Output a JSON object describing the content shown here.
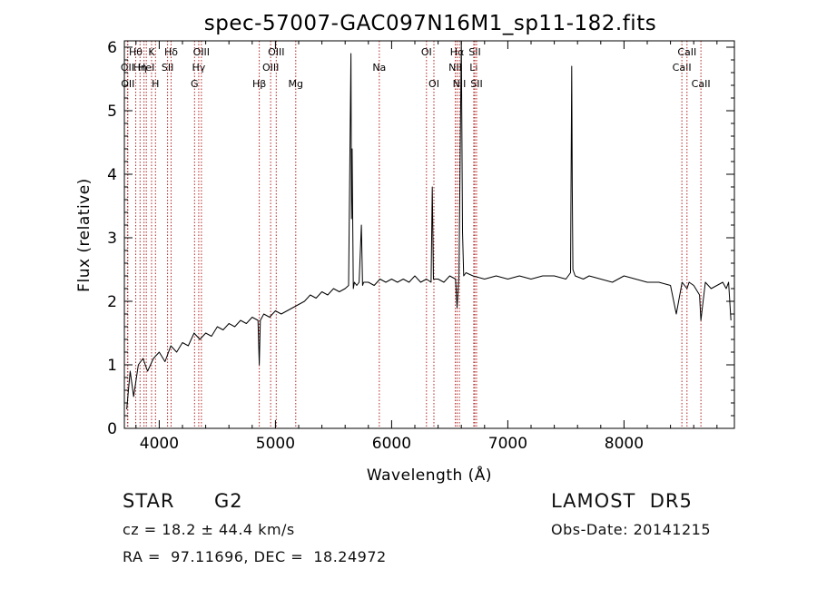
{
  "chart_data": {
    "type": "line",
    "title": "spec-57007-GAC097N16M1_sp11-182.fits",
    "xlabel": "Wavelength (Å)",
    "ylabel": "Flux (relative)",
    "xlim": [
      3700,
      8950
    ],
    "ylim": [
      0,
      6.1
    ],
    "xticks": [
      4000,
      5000,
      6000,
      7000,
      8000
    ],
    "yticks": [
      0,
      1,
      2,
      3,
      4,
      5,
      6
    ],
    "grid": false,
    "line_color": "#000000",
    "marker_color": "#b22222",
    "series": [
      {
        "x": [
          3720,
          3750,
          3780,
          3820,
          3860,
          3900,
          3950,
          4000,
          4050,
          4100,
          4150,
          4200,
          4250,
          4300,
          4350,
          4400,
          4450,
          4500,
          4550,
          4600,
          4650,
          4700,
          4750,
          4800,
          4850,
          4861,
          4870,
          4900,
          4950,
          5000,
          5050,
          5100,
          5150,
          5200,
          5250,
          5300,
          5350,
          5400,
          5450,
          5500,
          5550,
          5600,
          5630,
          5650,
          5655,
          5660,
          5670,
          5680,
          5700,
          5720,
          5740,
          5750,
          5760,
          5800,
          5850,
          5900,
          5950,
          6000,
          6050,
          6100,
          6150,
          6200,
          6250,
          6300,
          6340,
          6350,
          6360,
          6400,
          6450,
          6500,
          6550,
          6563,
          6580,
          6600,
          6610,
          6620,
          6640,
          6700,
          6800,
          6900,
          7000,
          7100,
          7200,
          7300,
          7400,
          7500,
          7540,
          7550,
          7555,
          7560,
          7580,
          7650,
          7700,
          7800,
          7900,
          8000,
          8100,
          8200,
          8300,
          8400,
          8450,
          8500,
          8542,
          8560,
          8600,
          8650,
          8662,
          8700,
          8750,
          8800,
          8850,
          8880,
          8900,
          8920
        ],
        "y": [
          0.3,
          0.9,
          0.5,
          1.0,
          1.1,
          0.9,
          1.1,
          1.2,
          1.05,
          1.3,
          1.2,
          1.35,
          1.3,
          1.5,
          1.4,
          1.5,
          1.45,
          1.6,
          1.55,
          1.65,
          1.6,
          1.7,
          1.65,
          1.75,
          1.7,
          1.0,
          1.7,
          1.8,
          1.75,
          1.85,
          1.8,
          1.85,
          1.9,
          1.95,
          2.0,
          2.1,
          2.05,
          2.15,
          2.1,
          2.2,
          2.15,
          2.2,
          2.25,
          5.9,
          3.3,
          4.4,
          2.2,
          2.3,
          2.25,
          2.3,
          3.2,
          2.25,
          2.3,
          2.3,
          2.25,
          2.35,
          2.3,
          2.35,
          2.3,
          2.35,
          2.3,
          2.4,
          2.3,
          2.35,
          2.3,
          3.8,
          2.35,
          2.35,
          2.3,
          2.4,
          2.35,
          1.9,
          2.4,
          6.1,
          3.1,
          2.4,
          2.45,
          2.4,
          2.35,
          2.4,
          2.35,
          2.4,
          2.35,
          2.4,
          2.4,
          2.35,
          2.45,
          5.7,
          3.8,
          2.5,
          2.4,
          2.35,
          2.4,
          2.35,
          2.3,
          2.4,
          2.35,
          2.3,
          2.3,
          2.25,
          1.8,
          2.3,
          2.2,
          2.3,
          2.25,
          2.1,
          1.7,
          2.3,
          2.2,
          2.25,
          2.3,
          2.2,
          2.3,
          1.7
        ]
      }
    ],
    "lines": [
      {
        "wave": 3727,
        "label": "OII",
        "row": 1
      },
      {
        "wave": 3730,
        "label": "OII",
        "row": 2
      },
      {
        "wave": 3798,
        "label": "Hθ",
        "row": 0
      },
      {
        "wave": 3835,
        "label": "Hη",
        "row": 1
      },
      {
        "wave": 3869,
        "label": "",
        "row": 0
      },
      {
        "wave": 3889,
        "label": "HeI",
        "row": 1
      },
      {
        "wave": 3934,
        "label": "K",
        "row": 0
      },
      {
        "wave": 3968,
        "label": "H",
        "row": 2
      },
      {
        "wave": 4072,
        "label": "SII",
        "row": 1
      },
      {
        "wave": 4102,
        "label": "Hδ",
        "row": 0
      },
      {
        "wave": 4304,
        "label": "G",
        "row": 2
      },
      {
        "wave": 4340,
        "label": "Hγ",
        "row": 1
      },
      {
        "wave": 4363,
        "label": "OIII",
        "row": 0
      },
      {
        "wave": 4861,
        "label": "Hβ",
        "row": 2
      },
      {
        "wave": 4959,
        "label": "OIII",
        "row": 1
      },
      {
        "wave": 5007,
        "label": "OIII",
        "row": 0
      },
      {
        "wave": 5175,
        "label": "Mg",
        "row": 2
      },
      {
        "wave": 5894,
        "label": "Na",
        "row": 1
      },
      {
        "wave": 6300,
        "label": "OI",
        "row": 0
      },
      {
        "wave": 6364,
        "label": "OI",
        "row": 2
      },
      {
        "wave": 6548,
        "label": "NII",
        "row": 1
      },
      {
        "wave": 6563,
        "label": "Hα",
        "row": 0
      },
      {
        "wave": 6583,
        "label": "NII",
        "row": 2
      },
      {
        "wave": 6707,
        "label": "Li",
        "row": 1
      },
      {
        "wave": 6716,
        "label": "SII",
        "row": 0
      },
      {
        "wave": 6731,
        "label": "SII",
        "row": 2
      },
      {
        "wave": 8498,
        "label": "CaII",
        "row": 1
      },
      {
        "wave": 8542,
        "label": "CaII",
        "row": 0
      },
      {
        "wave": 8662,
        "label": "CaII",
        "row": 2
      }
    ]
  },
  "info": {
    "object_class": "STAR",
    "subclass": "G2",
    "survey": "LAMOST  DR5",
    "redshift": "cz = 18.2 ± 44.4 km/s",
    "obs_date": "Obs-Date: 20141215",
    "coords": "RA =  97.11696, DEC =  18.24972"
  }
}
